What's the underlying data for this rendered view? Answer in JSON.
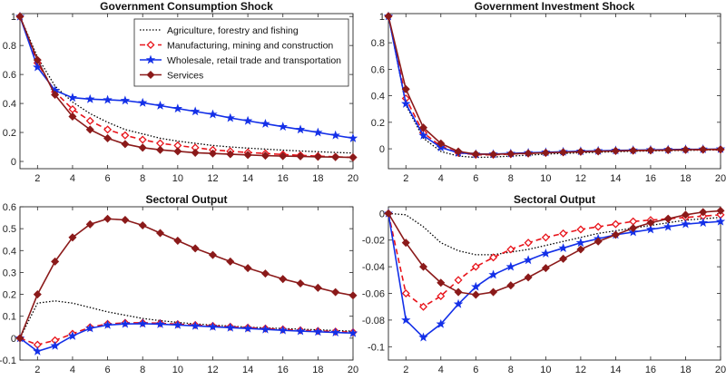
{
  "chart_data": [
    {
      "type": "line",
      "title": "Government Consumption Shock",
      "x": [
        1,
        2,
        3,
        4,
        5,
        6,
        7,
        8,
        9,
        10,
        11,
        12,
        13,
        14,
        15,
        16,
        17,
        18,
        19,
        20
      ],
      "xticks": [
        2,
        4,
        6,
        8,
        10,
        12,
        14,
        16,
        18,
        20
      ],
      "xtick_labels": [
        "2",
        "4",
        "6",
        "8",
        "10",
        "12",
        "14",
        "16",
        "18",
        "20"
      ],
      "xlim": [
        1,
        20
      ],
      "ylim": [
        -0.05,
        1.02
      ],
      "yticks": [
        0,
        0.2,
        0.4,
        0.6,
        0.8,
        1
      ],
      "ytick_labels": [
        "0",
        "0.2",
        "0.4",
        "0.6",
        "0.8",
        "1"
      ],
      "legend": "top-right",
      "series": [
        {
          "name": "Agriculture, forestry and fishing",
          "color": "#000000",
          "style": "dotted",
          "marker": "none",
          "values": [
            1,
            0.72,
            0.52,
            0.41,
            0.33,
            0.27,
            0.22,
            0.19,
            0.16,
            0.14,
            0.125,
            0.11,
            0.1,
            0.092,
            0.085,
            0.078,
            0.072,
            0.067,
            0.062,
            0.058
          ]
        },
        {
          "name": "Manufacturing, mining and construction",
          "color": "#e8141b",
          "style": "dashed",
          "marker": "diamond-open",
          "values": [
            1,
            0.68,
            0.48,
            0.36,
            0.28,
            0.22,
            0.18,
            0.15,
            0.125,
            0.11,
            0.095,
            0.08,
            0.07,
            0.062,
            0.055,
            0.048,
            0.042,
            0.037,
            0.032,
            0.028
          ]
        },
        {
          "name": "Wholesale, retail trade and transportation",
          "color": "#1430e8",
          "style": "solid",
          "marker": "star",
          "values": [
            1,
            0.65,
            0.49,
            0.44,
            0.43,
            0.425,
            0.42,
            0.405,
            0.385,
            0.365,
            0.345,
            0.325,
            0.3,
            0.28,
            0.26,
            0.24,
            0.22,
            0.2,
            0.18,
            0.16
          ]
        },
        {
          "name": "Services",
          "color": "#8b1a1a",
          "style": "solid",
          "marker": "diamond",
          "values": [
            1,
            0.7,
            0.46,
            0.31,
            0.22,
            0.16,
            0.12,
            0.095,
            0.08,
            0.07,
            0.06,
            0.055,
            0.05,
            0.045,
            0.04,
            0.037,
            0.035,
            0.032,
            0.03,
            0.028
          ]
        }
      ]
    },
    {
      "type": "line",
      "title": "Government Investment Shock",
      "x": [
        1,
        2,
        3,
        4,
        5,
        6,
        7,
        8,
        9,
        10,
        11,
        12,
        13,
        14,
        15,
        16,
        17,
        18,
        19,
        20
      ],
      "xticks": [
        2,
        4,
        6,
        8,
        10,
        12,
        14,
        16,
        18,
        20
      ],
      "xtick_labels": [
        "2",
        "4",
        "6",
        "8",
        "10",
        "12",
        "14",
        "16",
        "18",
        "20"
      ],
      "xlim": [
        1,
        20
      ],
      "ylim": [
        -0.15,
        1.02
      ],
      "yticks": [
        0,
        0.2,
        0.4,
        0.6,
        0.8,
        1
      ],
      "ytick_labels": [
        "0",
        "0.2",
        "0.4",
        "0.6",
        "0.8",
        "1"
      ],
      "series": [
        {
          "name": "Agriculture, forestry and fishing",
          "color": "#000000",
          "style": "dotted",
          "marker": "none",
          "values": [
            1,
            0.33,
            0.08,
            -0.02,
            -0.055,
            -0.065,
            -0.062,
            -0.055,
            -0.048,
            -0.04,
            -0.035,
            -0.03,
            -0.026,
            -0.022,
            -0.019,
            -0.016,
            -0.014,
            -0.012,
            -0.01,
            -0.009
          ]
        },
        {
          "name": "Manufacturing, mining and construction",
          "color": "#e8141b",
          "style": "dashed",
          "marker": "diamond-open",
          "values": [
            1,
            0.38,
            0.12,
            0.02,
            -0.03,
            -0.045,
            -0.045,
            -0.04,
            -0.035,
            -0.03,
            -0.026,
            -0.022,
            -0.019,
            -0.016,
            -0.014,
            -0.012,
            -0.01,
            -0.008,
            -0.007,
            -0.006
          ]
        },
        {
          "name": "Wholesale, retail trade and transportation",
          "color": "#1430e8",
          "style": "solid",
          "marker": "star",
          "values": [
            1,
            0.34,
            0.1,
            0.01,
            -0.03,
            -0.04,
            -0.04,
            -0.035,
            -0.03,
            -0.026,
            -0.022,
            -0.018,
            -0.015,
            -0.012,
            -0.01,
            -0.008,
            -0.006,
            -0.004,
            -0.003,
            -0.002
          ]
        },
        {
          "name": "Services",
          "color": "#8b1a1a",
          "style": "solid",
          "marker": "diamond",
          "values": [
            1,
            0.45,
            0.16,
            0.04,
            -0.02,
            -0.04,
            -0.042,
            -0.038,
            -0.034,
            -0.03,
            -0.026,
            -0.022,
            -0.019,
            -0.016,
            -0.013,
            -0.011,
            -0.009,
            -0.007,
            -0.005,
            -0.004
          ]
        }
      ]
    },
    {
      "type": "line",
      "title": "Sectoral Output",
      "x": [
        1,
        2,
        3,
        4,
        5,
        6,
        7,
        8,
        9,
        10,
        11,
        12,
        13,
        14,
        15,
        16,
        17,
        18,
        19,
        20
      ],
      "xticks": [
        2,
        4,
        6,
        8,
        10,
        12,
        14,
        16,
        18,
        20
      ],
      "xtick_labels": [
        "2",
        "4",
        "6",
        "8",
        "10",
        "12",
        "14",
        "16",
        "18",
        "20"
      ],
      "xlim": [
        1,
        20
      ],
      "ylim": [
        -0.1,
        0.6
      ],
      "yticks": [
        -0.1,
        0,
        0.1,
        0.2,
        0.3,
        0.4,
        0.5,
        0.6
      ],
      "ytick_labels": [
        "-0.1",
        "0",
        "0.1",
        "0.2",
        "0.3",
        "0.4",
        "0.5",
        "0.6"
      ],
      "series": [
        {
          "name": "Agriculture, forestry and fishing",
          "color": "#000000",
          "style": "dotted",
          "marker": "none",
          "values": [
            0,
            0.16,
            0.17,
            0.16,
            0.14,
            0.12,
            0.105,
            0.09,
            0.08,
            0.072,
            0.065,
            0.06,
            0.055,
            0.05,
            0.047,
            0.044,
            0.041,
            0.038,
            0.035,
            0.032
          ]
        },
        {
          "name": "Manufacturing, mining and construction",
          "color": "#e8141b",
          "style": "dashed",
          "marker": "diamond-open",
          "values": [
            0,
            -0.03,
            -0.01,
            0.02,
            0.05,
            0.065,
            0.07,
            0.07,
            0.068,
            0.064,
            0.06,
            0.056,
            0.052,
            0.048,
            0.044,
            0.04,
            0.036,
            0.033,
            0.03,
            0.027
          ]
        },
        {
          "name": "Wholesale, retail trade and transportation",
          "color": "#1430e8",
          "style": "solid",
          "marker": "star",
          "values": [
            0,
            -0.06,
            -0.035,
            0.01,
            0.045,
            0.06,
            0.065,
            0.066,
            0.064,
            0.06,
            0.056,
            0.052,
            0.048,
            0.044,
            0.04,
            0.036,
            0.032,
            0.029,
            0.026,
            0.023
          ]
        },
        {
          "name": "Services",
          "color": "#8b1a1a",
          "style": "solid",
          "marker": "diamond",
          "values": [
            0,
            0.2,
            0.35,
            0.46,
            0.52,
            0.545,
            0.54,
            0.515,
            0.48,
            0.445,
            0.41,
            0.38,
            0.35,
            0.32,
            0.295,
            0.27,
            0.25,
            0.23,
            0.21,
            0.195
          ]
        }
      ]
    },
    {
      "type": "line",
      "title": "Sectoral Output",
      "x": [
        1,
        2,
        3,
        4,
        5,
        6,
        7,
        8,
        9,
        10,
        11,
        12,
        13,
        14,
        15,
        16,
        17,
        18,
        19,
        20
      ],
      "xticks": [
        2,
        4,
        6,
        8,
        10,
        12,
        14,
        16,
        18,
        20
      ],
      "xtick_labels": [
        "2",
        "4",
        "6",
        "8",
        "10",
        "12",
        "14",
        "16",
        "18",
        "20"
      ],
      "xlim": [
        1,
        20
      ],
      "ylim": [
        -0.11,
        0.005
      ],
      "yticks": [
        -0.1,
        -0.08,
        -0.06,
        -0.04,
        -0.02,
        0
      ],
      "ytick_labels": [
        "-0.1",
        "-0.08",
        "-0.06",
        "-0.04",
        "-0.02",
        "0"
      ],
      "series": [
        {
          "name": "Agriculture, forestry and fishing",
          "color": "#000000",
          "style": "dotted",
          "marker": "none",
          "values": [
            0,
            -0.001,
            -0.01,
            -0.022,
            -0.028,
            -0.031,
            -0.031,
            -0.029,
            -0.027,
            -0.024,
            -0.021,
            -0.018,
            -0.015,
            -0.013,
            -0.011,
            -0.009,
            -0.007,
            -0.005,
            -0.004,
            -0.003
          ]
        },
        {
          "name": "Manufacturing, mining and construction",
          "color": "#e8141b",
          "style": "dashed",
          "marker": "diamond-open",
          "values": [
            0,
            -0.06,
            -0.07,
            -0.062,
            -0.05,
            -0.04,
            -0.033,
            -0.027,
            -0.022,
            -0.018,
            -0.015,
            -0.012,
            -0.01,
            -0.008,
            -0.006,
            -0.005,
            -0.004,
            -0.003,
            -0.002,
            -0.001
          ]
        },
        {
          "name": "Wholesale, retail trade and transportation",
          "color": "#1430e8",
          "style": "solid",
          "marker": "star",
          "values": [
            0,
            -0.08,
            -0.093,
            -0.083,
            -0.068,
            -0.055,
            -0.046,
            -0.04,
            -0.035,
            -0.03,
            -0.026,
            -0.022,
            -0.019,
            -0.016,
            -0.014,
            -0.012,
            -0.01,
            -0.008,
            -0.007,
            -0.006
          ]
        },
        {
          "name": "Services",
          "color": "#8b1a1a",
          "style": "solid",
          "marker": "diamond",
          "values": [
            0,
            -0.022,
            -0.04,
            -0.052,
            -0.059,
            -0.061,
            -0.059,
            -0.054,
            -0.048,
            -0.041,
            -0.034,
            -0.027,
            -0.021,
            -0.016,
            -0.011,
            -0.007,
            -0.004,
            -0.001,
            0.001,
            0.002
          ]
        }
      ]
    }
  ]
}
